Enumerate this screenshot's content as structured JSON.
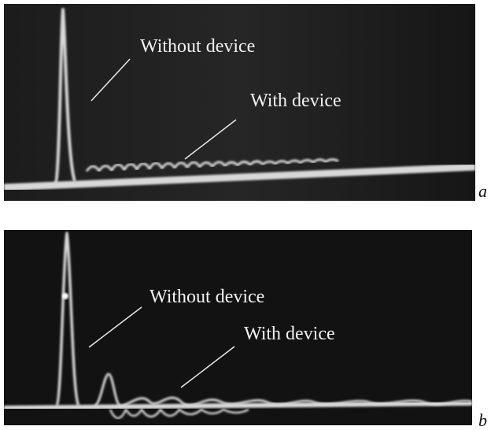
{
  "panels": [
    {
      "label": "a",
      "annotations": [
        "Without device",
        "With device"
      ]
    },
    {
      "label": "b",
      "annotations": [
        "Without device",
        "With device"
      ]
    }
  ]
}
